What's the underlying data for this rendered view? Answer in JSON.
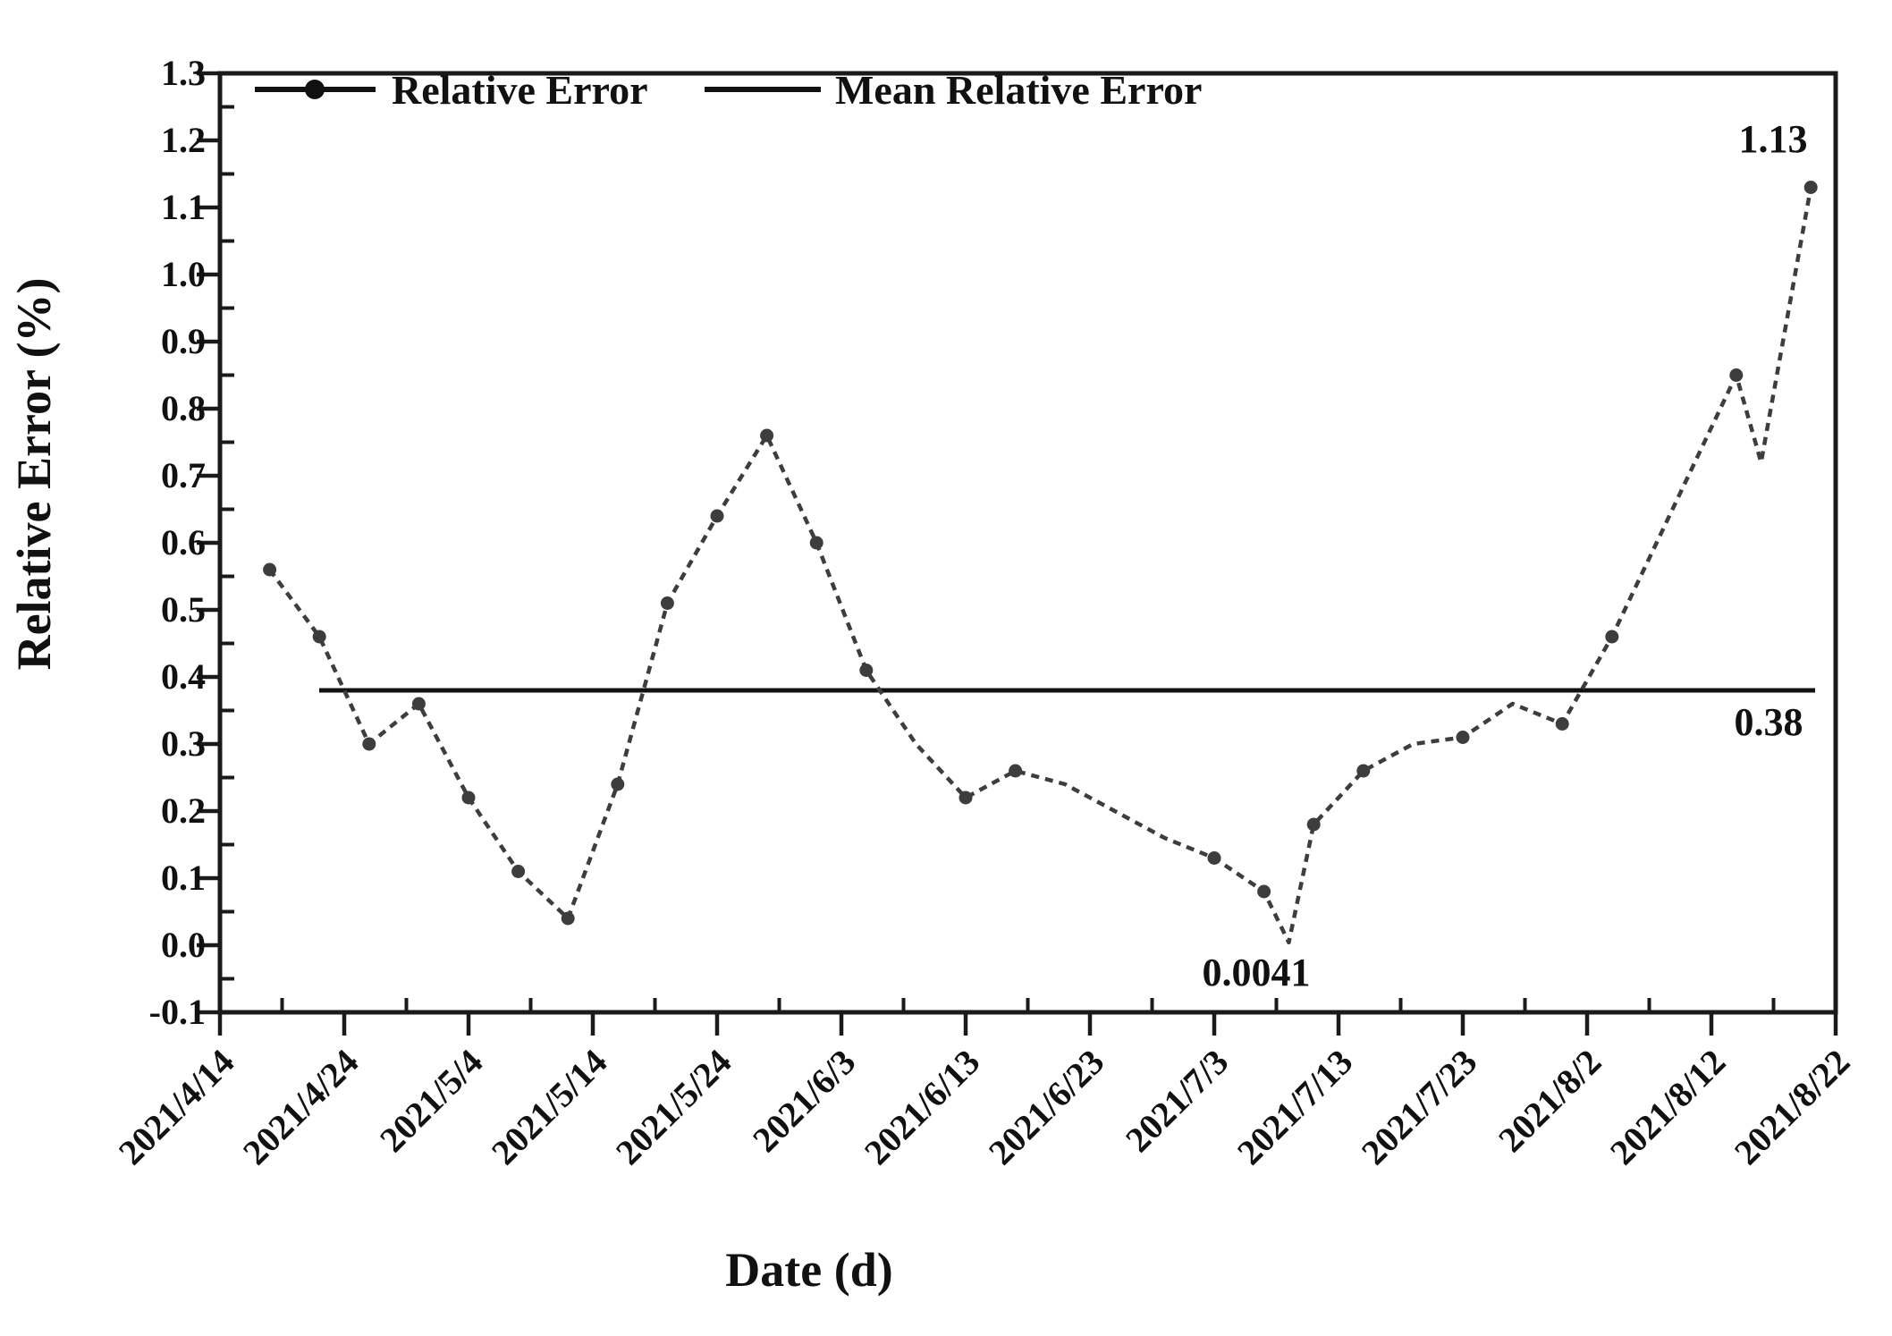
{
  "chart_data": {
    "type": "line",
    "title": "",
    "xlabel": "Date (d)",
    "ylabel": "Relative Error (%)",
    "ylim": [
      -0.1,
      1.3
    ],
    "y_tick_step": 0.1,
    "y_tick_labels": [
      "-0.1",
      "0.0",
      "0.1",
      "0.2",
      "0.3",
      "0.4",
      "0.5",
      "0.6",
      "0.7",
      "0.8",
      "0.9",
      "1.0",
      "1.1",
      "1.2",
      "1.3"
    ],
    "x_tick_labels": [
      "2021/4/14",
      "2021/4/24",
      "2021/5/4",
      "2021/5/14",
      "2021/5/24",
      "2021/6/3",
      "2021/6/13",
      "2021/6/23",
      "2021/7/3",
      "2021/7/13",
      "2021/7/23",
      "2021/8/2",
      "2021/8/12",
      "2021/8/22"
    ],
    "x_major_step_days": 10,
    "x_minor_step_days": 5,
    "x_range_days": 130,
    "grid": false,
    "legend_position": "top-left-inside",
    "legend": [
      {
        "label": "Relative Error",
        "style": "line-with-marker"
      },
      {
        "label": "Mean Relative Error",
        "style": "line"
      }
    ],
    "series": [
      {
        "name": "Relative Error",
        "line_style": "dashed",
        "points": [
          {
            "date": "2021/4/18",
            "value": 0.56,
            "marker": true
          },
          {
            "date": "2021/4/22",
            "value": 0.46,
            "marker": true
          },
          {
            "date": "2021/4/26",
            "value": 0.3,
            "marker": true
          },
          {
            "date": "2021/4/30",
            "value": 0.36,
            "marker": true
          },
          {
            "date": "2021/5/4",
            "value": 0.22,
            "marker": true
          },
          {
            "date": "2021/5/8",
            "value": 0.11,
            "marker": true
          },
          {
            "date": "2021/5/12",
            "value": 0.04,
            "marker": true
          },
          {
            "date": "2021/5/16",
            "value": 0.24,
            "marker": true
          },
          {
            "date": "2021/5/20",
            "value": 0.51,
            "marker": true
          },
          {
            "date": "2021/5/24",
            "value": 0.64,
            "marker": true
          },
          {
            "date": "2021/5/28",
            "value": 0.76,
            "marker": true
          },
          {
            "date": "2021/6/1",
            "value": 0.6,
            "marker": true
          },
          {
            "date": "2021/6/5",
            "value": 0.41,
            "marker": true
          },
          {
            "date": "2021/6/9",
            "value": 0.3,
            "marker": false
          },
          {
            "date": "2021/6/13",
            "value": 0.22,
            "marker": true
          },
          {
            "date": "2021/6/17",
            "value": 0.26,
            "marker": true
          },
          {
            "date": "2021/6/21",
            "value": 0.24,
            "marker": false
          },
          {
            "date": "2021/6/25",
            "value": 0.2,
            "marker": false
          },
          {
            "date": "2021/6/29",
            "value": 0.16,
            "marker": false
          },
          {
            "date": "2021/7/3",
            "value": 0.13,
            "marker": true
          },
          {
            "date": "2021/7/7",
            "value": 0.08,
            "marker": true
          },
          {
            "date": "2021/7/9",
            "value": 0.0041,
            "marker": false
          },
          {
            "date": "2021/7/11",
            "value": 0.18,
            "marker": true
          },
          {
            "date": "2021/7/15",
            "value": 0.26,
            "marker": true
          },
          {
            "date": "2021/7/19",
            "value": 0.3,
            "marker": false
          },
          {
            "date": "2021/7/23",
            "value": 0.31,
            "marker": true
          },
          {
            "date": "2021/7/27",
            "value": 0.36,
            "marker": false
          },
          {
            "date": "2021/7/31",
            "value": 0.33,
            "marker": true
          },
          {
            "date": "2021/8/4",
            "value": 0.46,
            "marker": true
          },
          {
            "date": "2021/8/14",
            "value": 0.85,
            "marker": true
          },
          {
            "date": "2021/8/16",
            "value": 0.72,
            "marker": false
          },
          {
            "date": "2021/8/20",
            "value": 1.13,
            "marker": true
          }
        ]
      }
    ],
    "mean_line": {
      "name": "Mean Relative Error",
      "value": 0.38
    },
    "annotations": [
      {
        "text": "1.13",
        "date": "2021/8/20",
        "value": 1.13,
        "position": "above-last-point"
      },
      {
        "text": "0.38",
        "date": "2021/8/18",
        "value": 0.38,
        "position": "below-mean-line-right"
      },
      {
        "text": "0.0041",
        "date": "2021/7/9",
        "value": 0.0041,
        "position": "below-minimum-point"
      }
    ],
    "colors": {
      "series": "#3d3d3d",
      "mean_line": "#111111",
      "axis": "#1a1a1a",
      "text": "#111111",
      "background": "#ffffff"
    }
  }
}
